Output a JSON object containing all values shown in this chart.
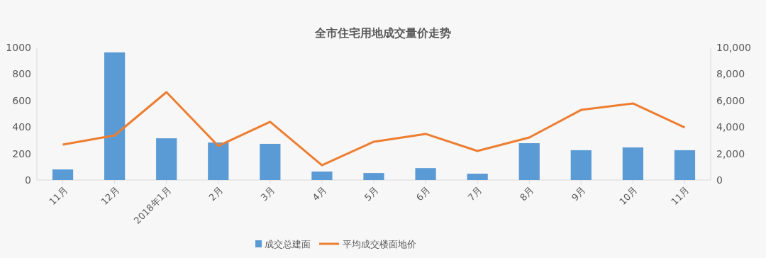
{
  "chart_data": {
    "type": "bar",
    "title": "全市住宅用地成交量价走势",
    "categories": [
      "11月",
      "12月",
      "2018年1月",
      "2月",
      "3月",
      "4月",
      "5月",
      "6月",
      "7月",
      "8月",
      "9月",
      "10月",
      "11月"
    ],
    "series": [
      {
        "name": "成交总建面",
        "color": "#5b9bd5",
        "values": [
          80,
          963,
          315,
          283,
          273,
          64,
          53,
          90,
          48,
          278,
          225,
          246,
          225
        ]
      },
      {
        "name": "平均成交楼面地价",
        "type": "line",
        "axis": "y2",
        "color": "#ed7d31",
        "values": [
          2670,
          3370,
          6630,
          2570,
          4390,
          1120,
          2890,
          3480,
          2190,
          3210,
          5290,
          5780,
          3960
        ]
      }
    ],
    "ylim": [
      0,
      1000
    ],
    "yticks": [
      0,
      200,
      400,
      600,
      800,
      1000
    ],
    "y2lim": [
      0,
      10000
    ],
    "y2ticks": [
      0,
      {
        "value": 2000,
        "label": "2,000"
      },
      {
        "value": 4000,
        "label": "4,000"
      },
      {
        "value": 6000,
        "label": "6,000"
      },
      {
        "value": 8000,
        "label": "8,000"
      },
      {
        "value": 10000,
        "label": "10,000"
      }
    ],
    "legend": "bottom",
    "grid": false
  }
}
